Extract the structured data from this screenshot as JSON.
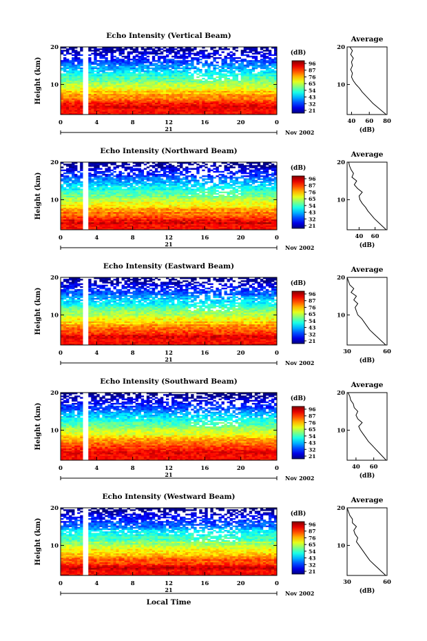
{
  "figure": {
    "xlabel": "Local Time",
    "date_label": "Nov 2002",
    "day_label": "21",
    "ylabel": "Height (km)",
    "colorbar_unit": "(dB)",
    "colorbar_ticks": [
      "96",
      "87",
      "76",
      "65",
      "54",
      "43",
      "32",
      "21"
    ],
    "avg_title": "Average",
    "avg_xlabel": "(dB)"
  },
  "chart_data": [
    {
      "type": "heatmap",
      "title": "Echo Intensity (Vertical Beam)",
      "x_ticks": [
        "0",
        "4",
        "8",
        "12",
        "16",
        "20",
        "0"
      ],
      "y_ticks": [
        "10",
        "20"
      ],
      "xlim": [
        0,
        24
      ],
      "ylim": [
        2,
        20
      ],
      "clim": [
        21,
        96
      ],
      "colorbar_ticks": [
        "96",
        "87",
        "76",
        "65",
        "54",
        "43",
        "32",
        "21"
      ],
      "data_gap_hours": [
        2.5,
        3.0
      ],
      "profile": {
        "title": "Average",
        "x_ticks": [
          "40",
          "60",
          "80"
        ],
        "xlim": [
          35,
          80
        ],
        "y_ticks": [
          "10",
          "20"
        ],
        "height": [
          2,
          3,
          4,
          5,
          6,
          7,
          8,
          9,
          10,
          11,
          12,
          13,
          14,
          15,
          16,
          17,
          18,
          19,
          20
        ],
        "value": [
          79,
          74,
          69,
          64,
          60,
          56,
          52,
          49,
          45,
          42,
          40,
          41,
          39,
          41,
          40,
          42,
          39,
          41,
          38
        ]
      }
    },
    {
      "type": "heatmap",
      "title": "Echo Intensity (Northward Beam)",
      "x_ticks": [
        "0",
        "4",
        "8",
        "12",
        "16",
        "20",
        "0"
      ],
      "y_ticks": [
        "10",
        "20"
      ],
      "xlim": [
        0,
        24
      ],
      "ylim": [
        2,
        20
      ],
      "clim": [
        21,
        96
      ],
      "colorbar_ticks": [
        "96",
        "87",
        "76",
        "65",
        "54",
        "43",
        "32",
        "21"
      ],
      "data_gap_hours": [
        2.5,
        3.0
      ],
      "profile": {
        "title": "Average",
        "x_ticks": [
          "40",
          "60"
        ],
        "xlim": [
          25,
          75
        ],
        "y_ticks": [
          "10",
          "20"
        ],
        "height": [
          2,
          3,
          4,
          5,
          6,
          7,
          8,
          9,
          10,
          11,
          12,
          13,
          14,
          15,
          16,
          17,
          18,
          19,
          20
        ],
        "value": [
          74,
          69,
          64,
          59,
          55,
          51,
          48,
          44,
          41,
          40,
          44,
          38,
          34,
          37,
          31,
          33,
          30,
          28,
          27
        ]
      }
    },
    {
      "type": "heatmap",
      "title": "Echo Intensity (Eastward Beam)",
      "x_ticks": [
        "0",
        "4",
        "8",
        "12",
        "16",
        "20",
        "0"
      ],
      "y_ticks": [
        "10",
        "20"
      ],
      "xlim": [
        0,
        24
      ],
      "ylim": [
        2,
        20
      ],
      "clim": [
        21,
        96
      ],
      "colorbar_ticks": [
        "96",
        "87",
        "76",
        "65",
        "54",
        "43",
        "32",
        "21"
      ],
      "data_gap_hours": [
        2.5,
        3.0
      ],
      "profile": {
        "title": "Average",
        "x_ticks": [
          "30",
          "60"
        ],
        "xlim": [
          30,
          60
        ],
        "y_ticks": [
          "10",
          "20"
        ],
        "height": [
          2,
          3,
          4,
          5,
          6,
          7,
          8,
          9,
          10,
          11,
          12,
          13,
          14,
          15,
          16,
          17,
          18,
          19,
          20
        ],
        "value": [
          59,
          56,
          53,
          50,
          47,
          45,
          43,
          41,
          38,
          37,
          36,
          38,
          35,
          37,
          33,
          35,
          32,
          31,
          30
        ]
      }
    },
    {
      "type": "heatmap",
      "title": "Echo Intensity (Southward Beam)",
      "x_ticks": [
        "0",
        "4",
        "8",
        "12",
        "16",
        "20",
        "0"
      ],
      "y_ticks": [
        "10",
        "20"
      ],
      "xlim": [
        0,
        24
      ],
      "ylim": [
        2,
        20
      ],
      "clim": [
        21,
        96
      ],
      "colorbar_ticks": [
        "96",
        "87",
        "76",
        "65",
        "54",
        "43",
        "32",
        "21"
      ],
      "data_gap_hours": [
        2.5,
        3.0
      ],
      "profile": {
        "title": "Average",
        "x_ticks": [
          "40",
          "60"
        ],
        "xlim": [
          30,
          75
        ],
        "y_ticks": [
          "10",
          "20"
        ],
        "height": [
          2,
          3,
          4,
          5,
          6,
          7,
          8,
          9,
          10,
          11,
          12,
          13,
          14,
          15,
          16,
          17,
          18,
          19,
          20
        ],
        "value": [
          74,
          70,
          66,
          62,
          58,
          54,
          51,
          48,
          45,
          43,
          47,
          42,
          40,
          42,
          38,
          37,
          34,
          33,
          31
        ]
      }
    },
    {
      "type": "heatmap",
      "title": "Echo Intensity (Westward Beam)",
      "x_ticks": [
        "0",
        "4",
        "8",
        "12",
        "16",
        "20",
        "0"
      ],
      "y_ticks": [
        "10",
        "20"
      ],
      "xlim": [
        0,
        24
      ],
      "ylim": [
        2,
        20
      ],
      "clim": [
        21,
        96
      ],
      "colorbar_ticks": [
        "96",
        "87",
        "76",
        "65",
        "54",
        "43",
        "32",
        "21"
      ],
      "data_gap_hours": [
        2.5,
        3.0
      ],
      "profile": {
        "title": "Average",
        "x_ticks": [
          "30",
          "60"
        ],
        "xlim": [
          30,
          60
        ],
        "y_ticks": [
          "10",
          "20"
        ],
        "height": [
          2,
          3,
          4,
          5,
          6,
          7,
          8,
          9,
          10,
          11,
          12,
          13,
          14,
          15,
          16,
          17,
          18,
          19,
          20
        ],
        "value": [
          59,
          56,
          53,
          50,
          47,
          45,
          43,
          41,
          39,
          37,
          38,
          36,
          35,
          37,
          34,
          34,
          32,
          31,
          30
        ]
      }
    }
  ]
}
